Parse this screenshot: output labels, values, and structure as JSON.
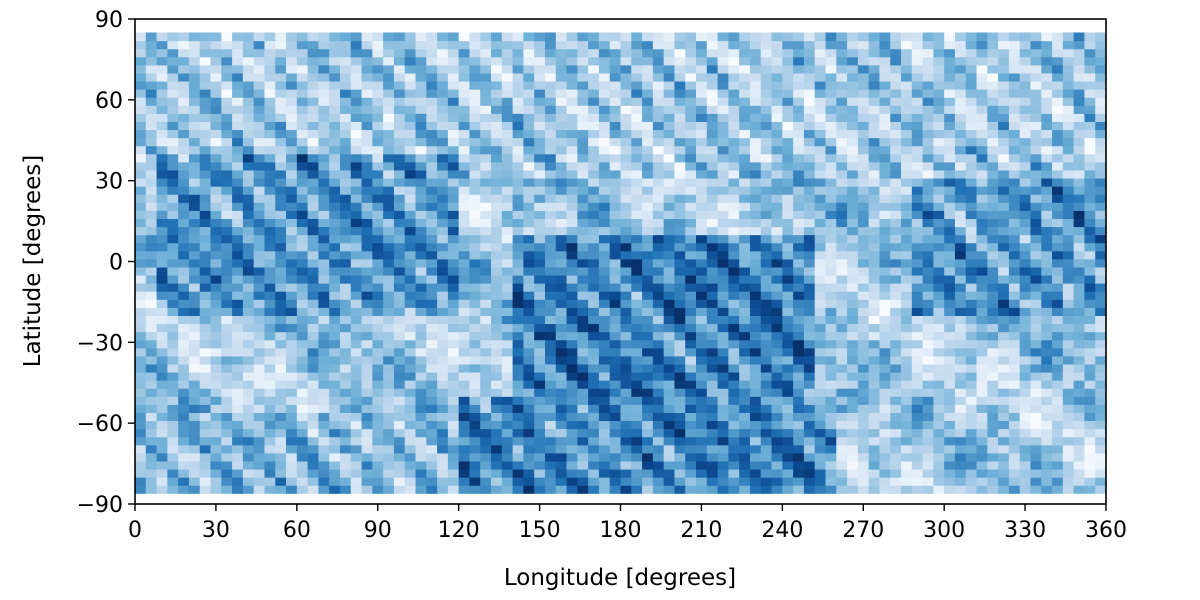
{
  "chart_data": {
    "type": "heatmap",
    "title": "",
    "xlabel": "Longitude [degrees]",
    "ylabel": "Latitude [degrees]",
    "xlim": [
      0,
      360
    ],
    "ylim": [
      -90,
      90
    ],
    "x_ticks": [
      0,
      30,
      60,
      90,
      120,
      150,
      180,
      210,
      240,
      270,
      300,
      330,
      360
    ],
    "y_ticks": [
      {
        "value": 90,
        "label": "90"
      },
      {
        "value": 60,
        "label": "60"
      },
      {
        "value": 30,
        "label": "30"
      },
      {
        "value": 0,
        "label": "0"
      },
      {
        "value": -30,
        "label": "−30"
      },
      {
        "value": -60,
        "label": "−60"
      },
      {
        "value": -90,
        "label": "−90"
      }
    ],
    "colormap": "Blues",
    "colors": {
      "low": "#f7fbff",
      "mid": "#6baed6",
      "high": "#08306b",
      "dark": "#0a4a90"
    },
    "data_lat_range": [
      -86,
      85
    ],
    "grid": false,
    "legend": "none",
    "features": [
      {
        "name": "northern-band",
        "lon": [
          0,
          360
        ],
        "lat": [
          30,
          85
        ],
        "level": 0.35
      },
      {
        "name": "equatorial-dark-patterns",
        "lon": [
          10,
          120
        ],
        "lat": [
          -20,
          40
        ],
        "level": 0.75
      },
      {
        "name": "central-dark-region",
        "lon": [
          140,
          250
        ],
        "lat": [
          -50,
          10
        ],
        "level": 0.9
      },
      {
        "name": "eastern-dark-patterns",
        "lon": [
          290,
          360
        ],
        "lat": [
          -20,
          30
        ],
        "level": 0.75
      },
      {
        "name": "southern-dark-basin",
        "lon": [
          120,
          260
        ],
        "lat": [
          -88,
          -50
        ],
        "level": 0.85
      },
      {
        "name": "southwest-scattered",
        "lon": [
          0,
          120
        ],
        "lat": [
          -88,
          -55
        ],
        "level": 0.5
      }
    ]
  }
}
